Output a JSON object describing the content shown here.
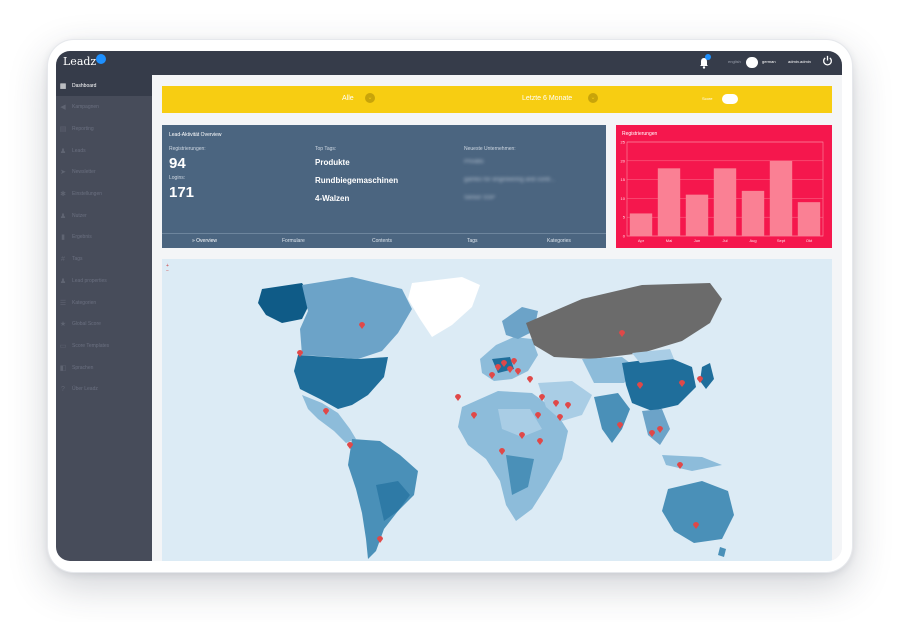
{
  "app": {
    "title": "Leadz"
  },
  "topbar": {
    "lang_left": "english",
    "lang_right": "german",
    "user": "admin.admin"
  },
  "sidebar": {
    "items": [
      {
        "label": "Dashboard",
        "icon": "grid-icon",
        "active": true
      },
      {
        "label": "Kampagnen",
        "icon": "megaphone-icon"
      },
      {
        "label": "Reporting",
        "icon": "report-icon"
      },
      {
        "label": "Leads",
        "icon": "people-icon"
      },
      {
        "label": "Newsletter",
        "icon": "send-icon"
      },
      {
        "label": "Einstellungen",
        "icon": "gear-icon"
      },
      {
        "label": "Nutzer",
        "icon": "users-icon"
      },
      {
        "label": "Ergebnis",
        "icon": "chart-icon"
      },
      {
        "label": "Tags",
        "icon": "hash-icon"
      },
      {
        "label": "Lead properties",
        "icon": "people2-icon"
      },
      {
        "label": "Kategorien",
        "icon": "list-icon"
      },
      {
        "label": "Global Score",
        "icon": "star-icon"
      },
      {
        "label": "Score Templates",
        "icon": "template-icon"
      },
      {
        "label": "Sprachen",
        "icon": "language-icon"
      },
      {
        "label": "Über Leadz",
        "icon": "question-icon"
      }
    ]
  },
  "filters": {
    "all": "Alle",
    "range": "Letzte 6 Monate",
    "toggle_label": "Score"
  },
  "overview": {
    "title": "Lead-Aktivität Overview",
    "registrations_label": "Registrierungen:",
    "registrations_value": "94",
    "logins_label": "Logins:",
    "logins_value": "171",
    "top_tags_label": "Top Tags:",
    "top_tags": [
      "Produkte",
      "Rundbiegemaschinen",
      "4-Walzen"
    ],
    "companies_label": "Neueste Unternehmen:",
    "companies": [
      "Privatis",
      "gamko for engineering and contr...",
      "Senior SSP"
    ],
    "tabs": [
      "» Overview",
      "Formulare",
      "Contents",
      "Tags",
      "Kategories"
    ]
  },
  "registrations_chart": {
    "title": "Registrierungen",
    "colors": {
      "background": "#f5174d",
      "bar": "#fa8094"
    },
    "chart_data": {
      "type": "bar",
      "categories": [
        "Apr",
        "Mai",
        "Jun",
        "Jul",
        "Aug",
        "Sept",
        "Okt"
      ],
      "values": [
        6,
        18,
        11,
        18,
        12,
        20,
        9
      ],
      "ylim": [
        0,
        25
      ],
      "yticks": [
        "25",
        "20",
        "15",
        "10",
        "5",
        "0"
      ],
      "grid": true
    }
  }
}
